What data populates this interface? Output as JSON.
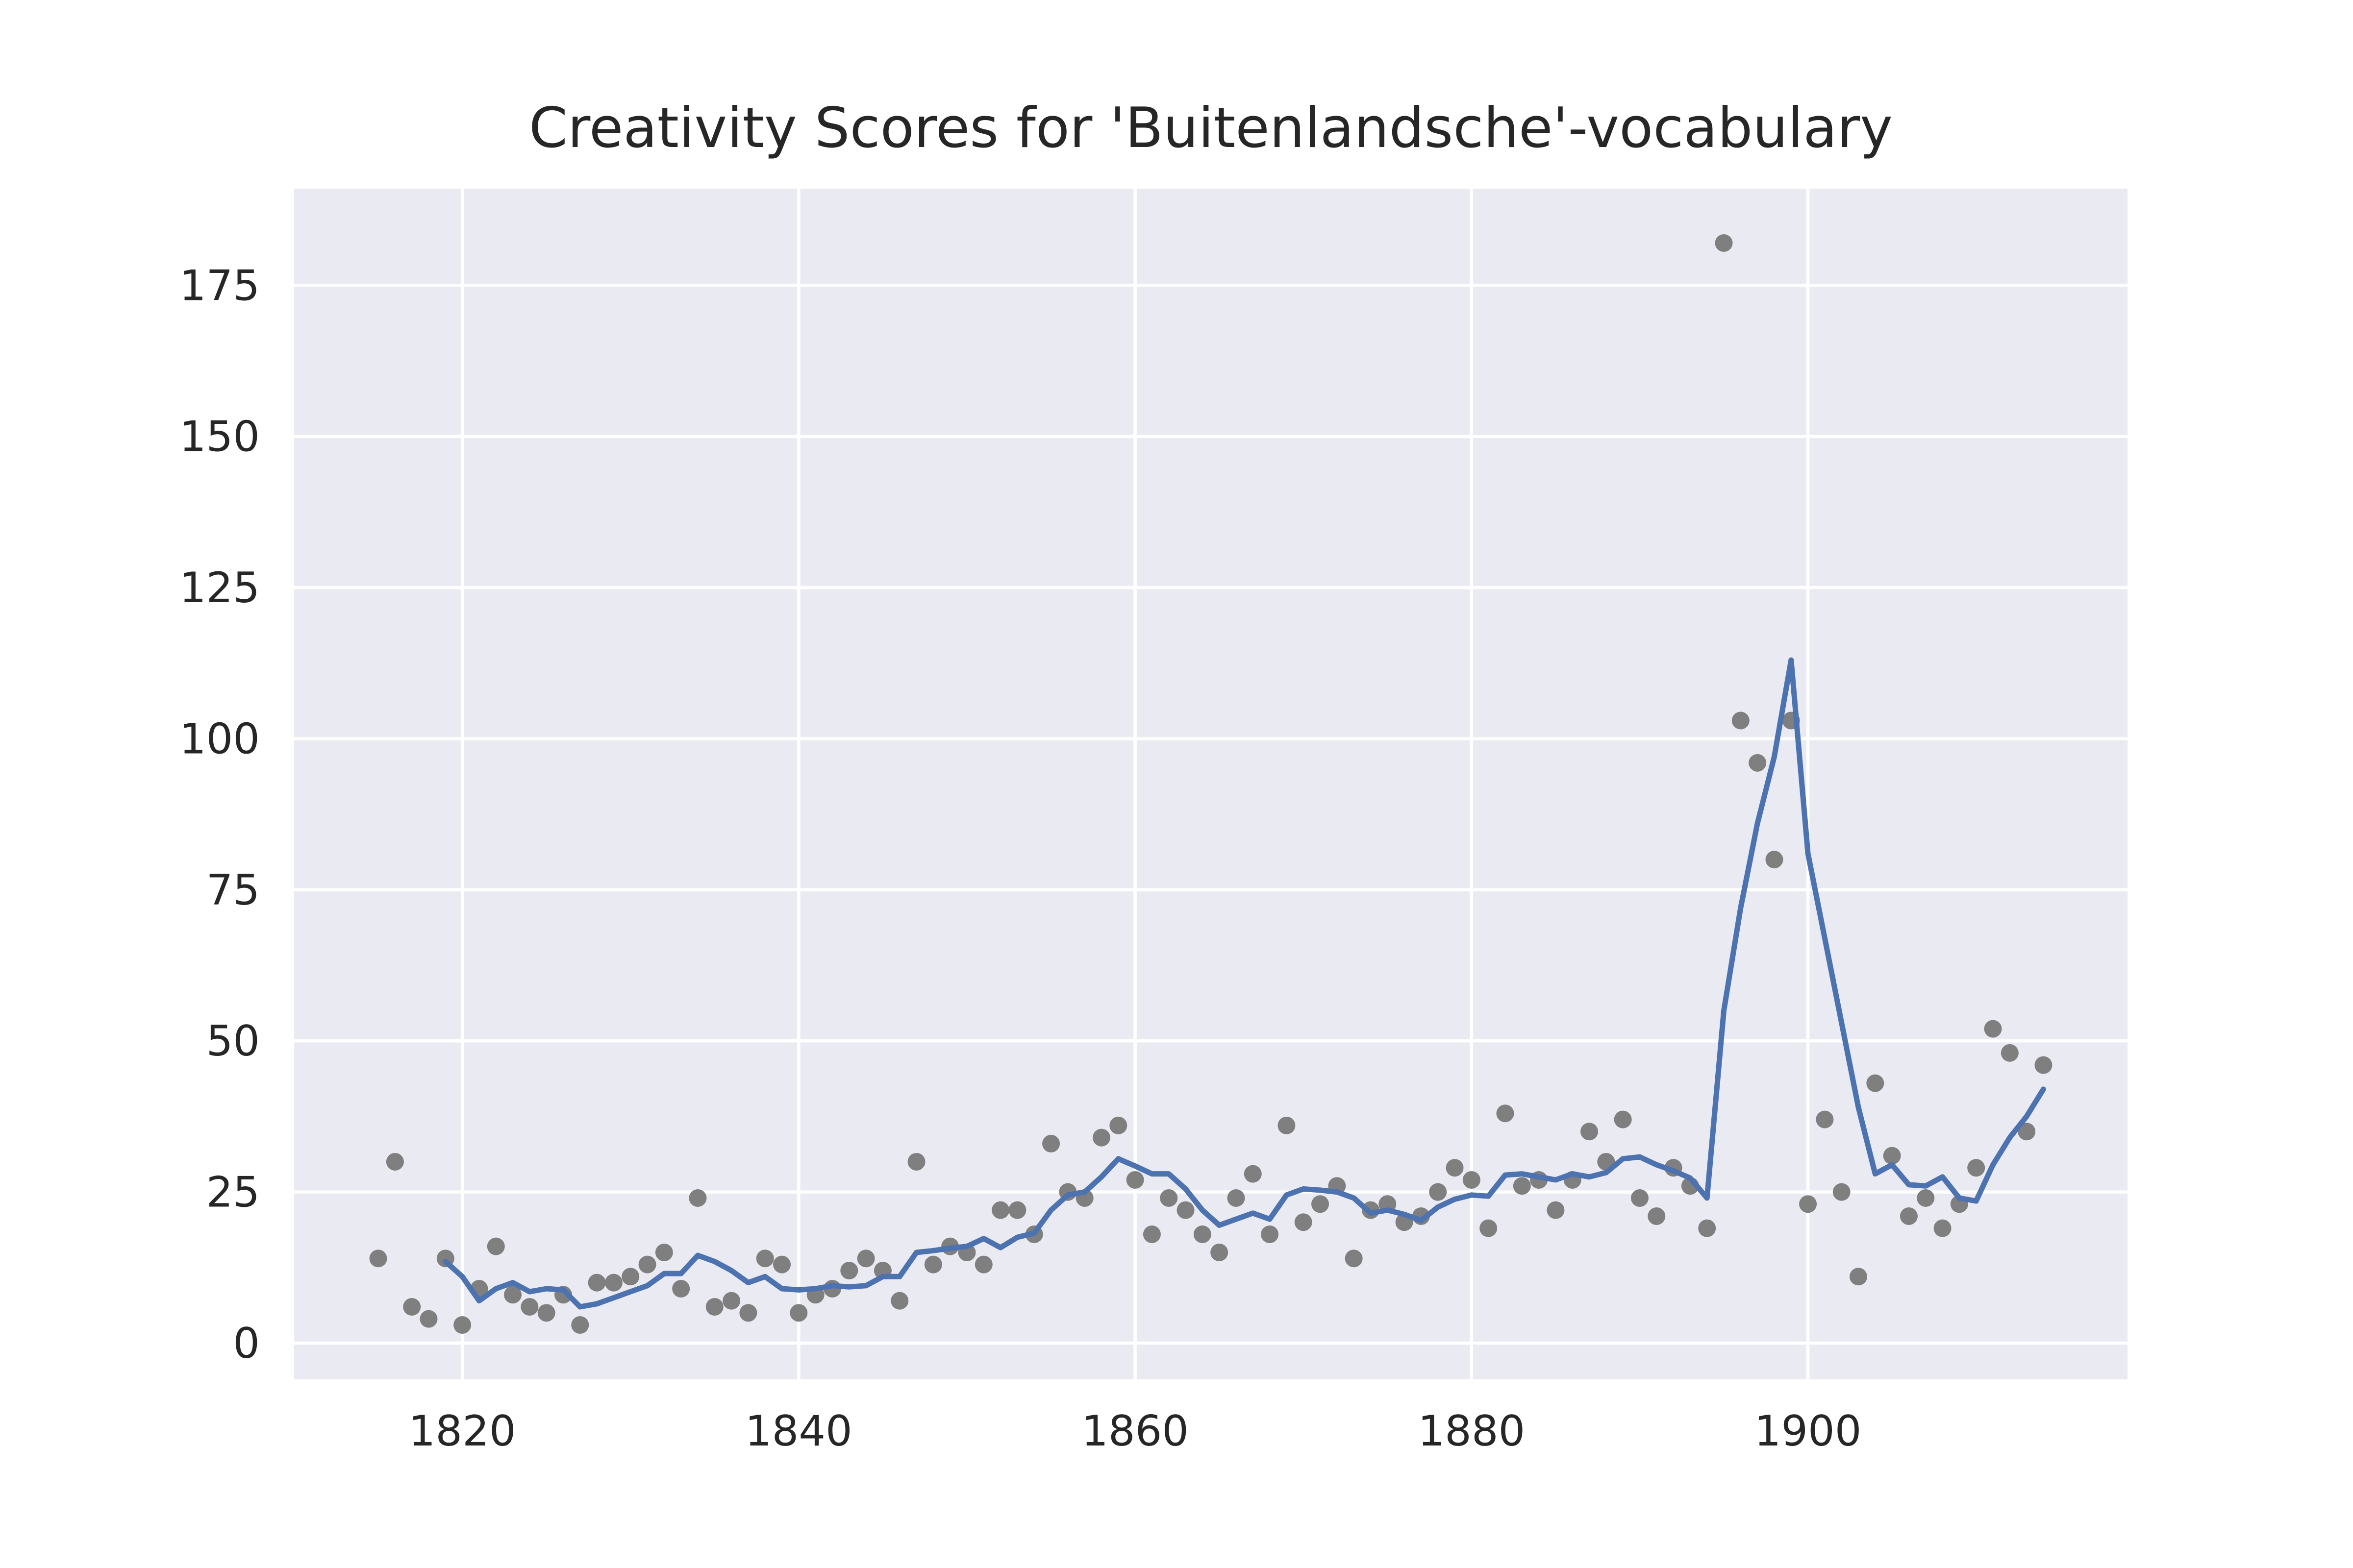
{
  "chart_data": {
    "type": "scatter",
    "title": "Creativity Scores for 'Buitenlandsche'-vocabulary",
    "xlabel": "",
    "ylabel": "",
    "xlim": [
      1810,
      1919
    ],
    "ylim": [
      -6,
      191
    ],
    "xticks": [
      1820,
      1840,
      1860,
      1880,
      1900
    ],
    "yticks": [
      0,
      25,
      50,
      75,
      100,
      125,
      150,
      175
    ],
    "grid": true,
    "background": "#eaeaf2",
    "series": [
      {
        "kind": "points",
        "color": "#7f7f7f",
        "x": [
          1815,
          1816,
          1817,
          1818,
          1819,
          1820,
          1821,
          1822,
          1823,
          1824,
          1825,
          1826,
          1827,
          1828,
          1829,
          1830,
          1831,
          1832,
          1833,
          1834,
          1835,
          1836,
          1837,
          1838,
          1839,
          1840,
          1841,
          1842,
          1843,
          1844,
          1845,
          1846,
          1847,
          1848,
          1849,
          1850,
          1851,
          1852,
          1853,
          1854,
          1855,
          1856,
          1857,
          1858,
          1859,
          1860,
          1861,
          1862,
          1863,
          1864,
          1865,
          1866,
          1867,
          1868,
          1869,
          1870,
          1871,
          1872,
          1873,
          1874,
          1875,
          1876,
          1877,
          1878,
          1879,
          1880,
          1881,
          1882,
          1883,
          1884,
          1885,
          1886,
          1887,
          1888,
          1889,
          1890,
          1891,
          1892,
          1893,
          1894,
          1895,
          1896,
          1897,
          1898,
          1899,
          1900,
          1901,
          1902,
          1903,
          1904,
          1905,
          1906,
          1907,
          1908,
          1909,
          1910,
          1911,
          1912,
          1913,
          1914
        ],
        "y": [
          14,
          30,
          6,
          4,
          14,
          3,
          9,
          16,
          8,
          6,
          5,
          8,
          3,
          10,
          10,
          11,
          13,
          15,
          9,
          24,
          6,
          7,
          5,
          14,
          13,
          5,
          8,
          9,
          12,
          14,
          12,
          7,
          30,
          13,
          16,
          15,
          13,
          22,
          22,
          18,
          33,
          25,
          24,
          34,
          36,
          27,
          18,
          24,
          22,
          18,
          15,
          24,
          28,
          18,
          36,
          20,
          23,
          26,
          14,
          22,
          23,
          20,
          21,
          25,
          29,
          27,
          19,
          38,
          26,
          27,
          22,
          27,
          35,
          30,
          37,
          24,
          21,
          29,
          26,
          19,
          182,
          103,
          96,
          80,
          103,
          23,
          37,
          25,
          11,
          43,
          31,
          21,
          24,
          19,
          23,
          29,
          52,
          48,
          35,
          46
        ]
      },
      {
        "kind": "line",
        "color": "#4c72b0",
        "x": [
          1819,
          1820,
          1821,
          1822,
          1823,
          1824,
          1825,
          1826,
          1827,
          1828,
          1829,
          1830,
          1831,
          1832,
          1833,
          1834,
          1835,
          1836,
          1837,
          1838,
          1839,
          1840,
          1841,
          1842,
          1843,
          1844,
          1845,
          1846,
          1847,
          1848,
          1849,
          1850,
          1851,
          1852,
          1853,
          1854,
          1855,
          1856,
          1857,
          1858,
          1859,
          1860,
          1861,
          1862,
          1863,
          1864,
          1865,
          1866,
          1867,
          1868,
          1869,
          1870,
          1871,
          1872,
          1873,
          1874,
          1875,
          1876,
          1877,
          1878,
          1879,
          1880,
          1881,
          1882,
          1883,
          1884,
          1885,
          1886,
          1887,
          1888,
          1889,
          1890,
          1891,
          1892,
          1893,
          1894,
          1895,
          1896,
          1897,
          1898,
          1899,
          1900,
          1901,
          1902,
          1903,
          1904,
          1905,
          1906,
          1907,
          1908,
          1909,
          1910,
          1911,
          1912,
          1913,
          1914
        ],
        "y": [
          13.5,
          11,
          7,
          9,
          10,
          8.5,
          9,
          8.8,
          6,
          6.5,
          7.5,
          8.5,
          9.5,
          11.5,
          11.5,
          14.5,
          13.5,
          12,
          10,
          11,
          9,
          8.8,
          9,
          9.5,
          9.3,
          9.5,
          11,
          11,
          15,
          15.3,
          15.7,
          16,
          17.3,
          15.8,
          17.5,
          18.2,
          22,
          24.5,
          25,
          27.5,
          30.5,
          29.3,
          28,
          28,
          25.5,
          22,
          19.5,
          20.5,
          21.5,
          20.5,
          24.5,
          25.5,
          25.3,
          25,
          24,
          21.5,
          22,
          21.3,
          20.3,
          22.5,
          23.8,
          24.5,
          24.3,
          27.8,
          28,
          27.5,
          27,
          28,
          27.5,
          28.2,
          30.5,
          30.8,
          29.5,
          28.5,
          27.3,
          24,
          55,
          72,
          86,
          97,
          113,
          81,
          67,
          53,
          39,
          28,
          29.5,
          26.2,
          26,
          27.5,
          24,
          23.5,
          29.5,
          34,
          37.5,
          42
        ]
      }
    ]
  }
}
